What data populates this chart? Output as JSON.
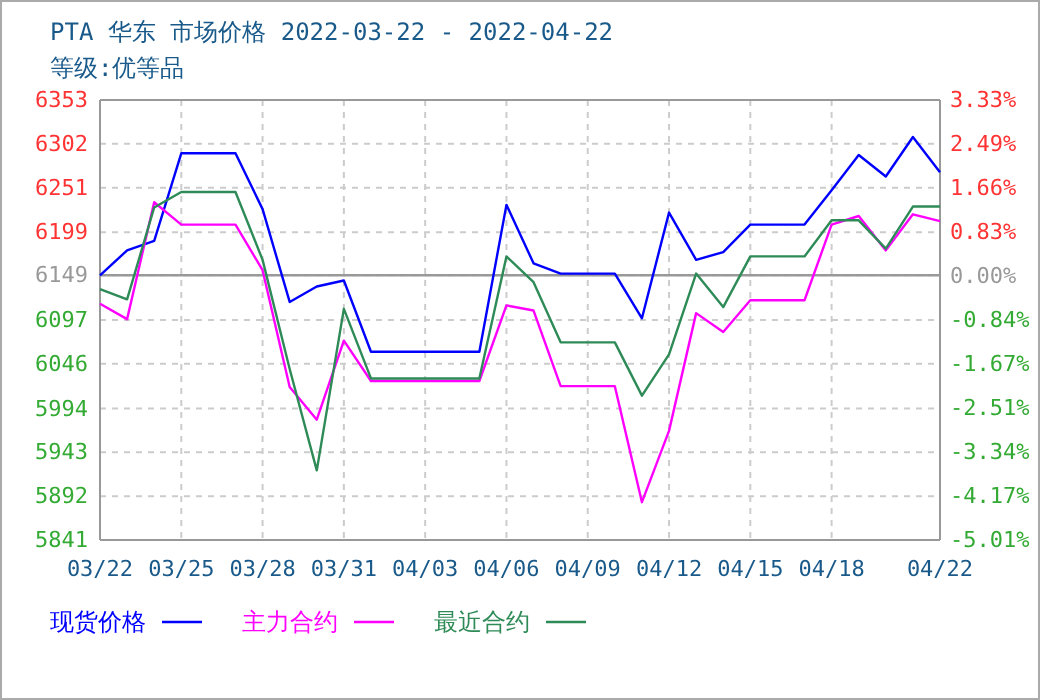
{
  "chart_data": {
    "type": "line",
    "title": "PTA 华东 市场价格 2022-03-22 - 2022-04-22",
    "subtitle": "等级:优等品",
    "x": [
      "2022-03-22",
      "2022-03-23",
      "2022-03-24",
      "2022-03-25",
      "2022-03-26",
      "2022-03-27",
      "2022-03-28",
      "2022-03-29",
      "2022-03-30",
      "2022-03-31",
      "2022-04-01",
      "2022-04-02",
      "2022-04-03",
      "2022-04-04",
      "2022-04-05",
      "2022-04-06",
      "2022-04-07",
      "2022-04-08",
      "2022-04-09",
      "2022-04-10",
      "2022-04-11",
      "2022-04-12",
      "2022-04-13",
      "2022-04-14",
      "2022-04-15",
      "2022-04-16",
      "2022-04-17",
      "2022-04-18",
      "2022-04-19",
      "2022-04-20",
      "2022-04-21",
      "2022-04-22"
    ],
    "series": [
      {
        "name": "现货价格",
        "color": "#0000ff",
        "values": [
          6149,
          6178,
          6189,
          6291,
          6291,
          6291,
          6226,
          6118,
          6136,
          6143,
          6060,
          6060,
          6060,
          6060,
          6060,
          6231,
          6163,
          6151,
          6151,
          6151,
          6099,
          6222,
          6167,
          6176,
          6208,
          6208,
          6208,
          6248,
          6289,
          6264,
          6310,
          6269
        ]
      },
      {
        "name": "主力合约",
        "color": "#ff00ff",
        "values": [
          6116,
          6098,
          6234,
          6208,
          6208,
          6208,
          6155,
          6019,
          5981,
          6073,
          6026,
          6026,
          6026,
          6026,
          6026,
          6114,
          6108,
          6020,
          6020,
          6020,
          5885,
          5968,
          6105,
          6083,
          6120,
          6120,
          6120,
          6208,
          6218,
          6178,
          6220,
          6212
        ]
      },
      {
        "name": "最近合约",
        "color": "#2e8b57",
        "values": [
          6133,
          6121,
          6228,
          6246,
          6246,
          6246,
          6167,
          6040,
          5922,
          6110,
          6029,
          6029,
          6029,
          6029,
          6029,
          6171,
          6141,
          6071,
          6071,
          6071,
          6009,
          6057,
          6151,
          6112,
          6171,
          6171,
          6171,
          6213,
          6213,
          6180,
          6229,
          6229
        ]
      }
    ],
    "xlim": [
      "2022-03-22",
      "2022-04-22"
    ],
    "xticks": [
      {
        "value": "2022-03-22",
        "label": "03/22"
      },
      {
        "value": "2022-03-25",
        "label": "03/25"
      },
      {
        "value": "2022-03-28",
        "label": "03/28"
      },
      {
        "value": "2022-03-31",
        "label": "03/31"
      },
      {
        "value": "2022-04-03",
        "label": "04/03"
      },
      {
        "value": "2022-04-06",
        "label": "04/06"
      },
      {
        "value": "2022-04-09",
        "label": "04/09"
      },
      {
        "value": "2022-04-12",
        "label": "04/12"
      },
      {
        "value": "2022-04-15",
        "label": "04/15"
      },
      {
        "value": "2022-04-18",
        "label": "04/18"
      },
      {
        "value": "2022-04-22",
        "label": "04/22"
      }
    ],
    "ylim": [
      5841,
      6353
    ],
    "yticks": [
      5841,
      5892,
      5943,
      5994,
      6046,
      6097,
      6149,
      6199,
      6251,
      6302,
      6353
    ],
    "y2lim": [
      -5.01,
      3.33
    ],
    "y2ticks": [
      {
        "value": -5.01,
        "label": "-5.01%"
      },
      {
        "value": -4.17,
        "label": "-4.17%"
      },
      {
        "value": -3.34,
        "label": "-3.34%"
      },
      {
        "value": -2.51,
        "label": "-2.51%"
      },
      {
        "value": -1.67,
        "label": "-1.67%"
      },
      {
        "value": -0.84,
        "label": "-0.84%"
      },
      {
        "value": 0,
        "label": "0.00%"
      },
      {
        "value": 0.83,
        "label": "0.83%"
      },
      {
        "value": 1.66,
        "label": "1.66%"
      },
      {
        "value": 2.49,
        "label": "2.49%"
      },
      {
        "value": 3.33,
        "label": "3.33%"
      }
    ],
    "ref_lines": [
      {
        "axis": "y",
        "value": 6149,
        "color": "#999999"
      }
    ],
    "grid": true,
    "legend": "bottom",
    "marker": "none",
    "line_style": "solid"
  }
}
